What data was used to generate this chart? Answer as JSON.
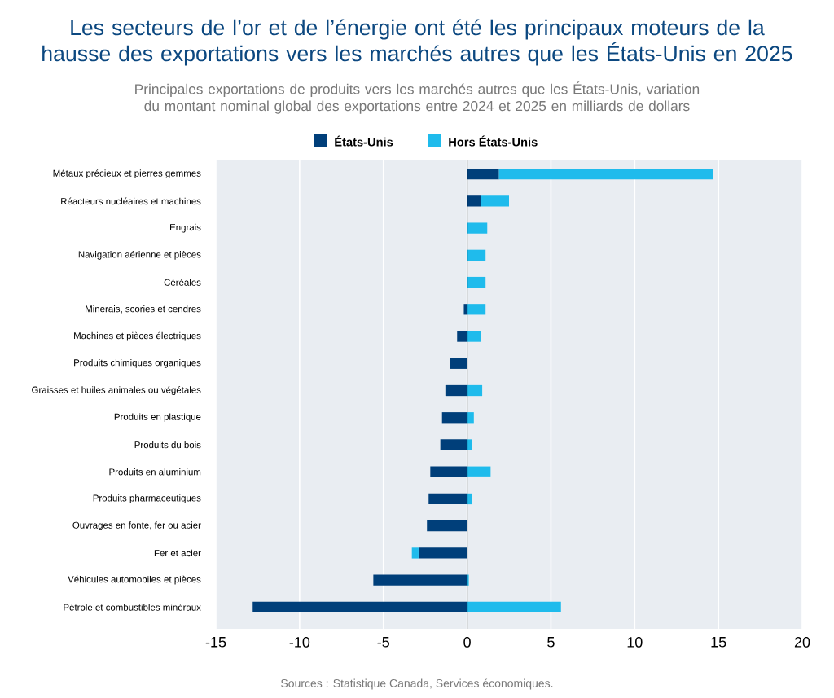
{
  "chart_data": {
    "type": "bar",
    "orientation": "horizontal",
    "stacked": true,
    "title": "Les secteurs de l’or et de l’énergie ont été les principaux moteurs de la hausse des exportations vers les marchés autres que les États-Unis en 2025",
    "subtitle": "Principales exportations de produits vers les marchés autres que les États-Unis, variation du montant nominal global des exportations entre 2024 et 2025 en milliards de dollars",
    "categories": [
      "Métaux précieux et pierres gemmes",
      "Réacteurs nucléaires et machines",
      "Engrais",
      "Navigation aérienne et pièces",
      "Céréales",
      "Minerais, scories et cendres",
      "Machines et pièces électriques",
      "Produits chimiques organiques",
      "Graisses et huiles animales ou végétales",
      "Produits en plastique",
      "Produits du bois",
      "Produits en aluminium",
      "Produits pharmaceutiques",
      "Ouvrages en fonte, fer ou acier",
      "Fer et acier",
      "Véhicules automobiles et pièces",
      "Pétrole et combustibles minéraux"
    ],
    "series": [
      {
        "name": "États-Unis",
        "color": "#003f7a",
        "values": [
          1.9,
          0.8,
          0,
          0,
          0,
          -0.2,
          -0.6,
          -1.0,
          -1.3,
          -1.5,
          -1.6,
          -2.2,
          -2.3,
          -2.4,
          -2.9,
          -5.6,
          -12.8
        ]
      },
      {
        "name": "Hors États-Unis",
        "color": "#1fbbec",
        "values": [
          12.8,
          1.7,
          1.2,
          1.1,
          1.1,
          1.1,
          0.8,
          0,
          0.9,
          0.4,
          0.3,
          1.4,
          0.3,
          0,
          -0.4,
          0.1,
          5.6
        ]
      }
    ],
    "xlim": [
      -15,
      20
    ],
    "xticks": [
      -15,
      -10,
      -5,
      0,
      5,
      10,
      15,
      20
    ],
    "grid": "x",
    "legend": "top",
    "annotations": [
      "Sources : Statistique Canada, Services économiques."
    ]
  }
}
